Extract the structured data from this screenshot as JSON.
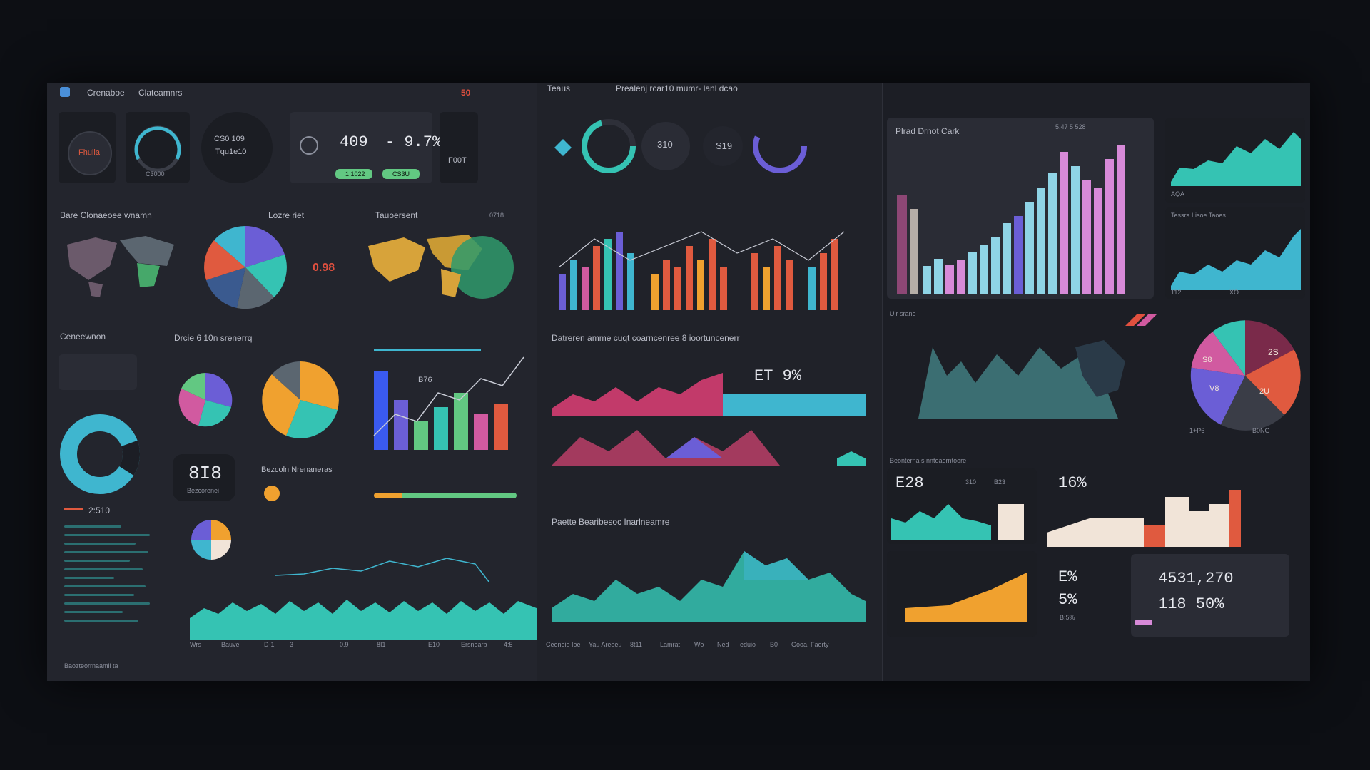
{
  "left": {
    "header_a": "Crenaboe",
    "header_b": "Clateamnrs",
    "badge": "50",
    "gauge_val_1": "409",
    "gauge_val_2": "- 9.7%",
    "gauge_sub": "C3000",
    "btn_a": "1 1022",
    "btn_b": "CS3U",
    "circle_text": "CS0 109",
    "circle_sub": "Tqu1e10",
    "kpi_right": "F00T",
    "section_map": "Bare Clonaeoee wnamn",
    "section_pie": "Lozre riet",
    "section_world": "Tauoersent",
    "world_value": "0718",
    "pie_side_value": "0.98",
    "section_conv": "Ceneewnon",
    "section_donut": "Drcie 6 10n srenerrq",
    "big_kpi": "8I8",
    "big_kpi_sub": "Bezcorenei",
    "bar_value": "B76",
    "ring_value": "2:510",
    "legend_title": "Bezcoln Nrenaneras",
    "bottom_labels": [
      "Wrs",
      "Bauvel",
      "D-1",
      "3",
      "0.9",
      "8I1",
      "E10",
      "Ersnearb",
      "4:5"
    ],
    "footer": "Baozteorrnaamil ta"
  },
  "mid": {
    "title_a": "Teaus",
    "title_b": "Prealenj rcar10 mumr- lanl dcao",
    "gauge_1": "310",
    "gauge_2": "S19",
    "section_2": "Datreren amme cuqt coarncenree 8 ioortuncenerr",
    "area_value": "ET 9%",
    "section_3": "Paette Bearibesoc Inarlneamre",
    "axis_labels": [
      "Ceeneio Ioe",
      "Yau Areoeu",
      "8t11",
      "Lamrat",
      "Wo",
      "Ned",
      "eduio",
      "B0",
      "Gooa. Faerty"
    ]
  },
  "right": {
    "chart_title": "Plrad Drnot Cark",
    "chart_value": "5,47 5 528",
    "spark_a_label": "AQA",
    "spark_b_title": "Tessra Lisoe Taoes",
    "spark_b_values": [
      "112",
      "XO"
    ],
    "map_title": "Ulr srane",
    "pie_values": [
      "2S",
      "S8",
      "V8",
      "2U"
    ],
    "pie_caption": "1+P6",
    "pie_caption_b": "B0NG",
    "kpi_panel_title": "Beonterna s nntoaorntoore",
    "kpi_1": "E28",
    "kpi_1b": "310",
    "kpi_1c": "B23",
    "kpi_2": "16%",
    "kpi_3": "E%",
    "kpi_4": "5%",
    "kpi_4_sub": "B:5%",
    "big_num_1": "4531,270",
    "big_num_2": "118 50%"
  },
  "colors": {
    "teal": "#35c3b3",
    "cyan": "#3fb6cf",
    "orange": "#f0a12f",
    "red": "#e05a3f",
    "pink": "#d15aa0",
    "purple": "#6b5ed6",
    "violet": "#d78ad8",
    "lightblue": "#8fd4e6",
    "cream": "#f1e4d8",
    "green": "#62c882"
  }
}
